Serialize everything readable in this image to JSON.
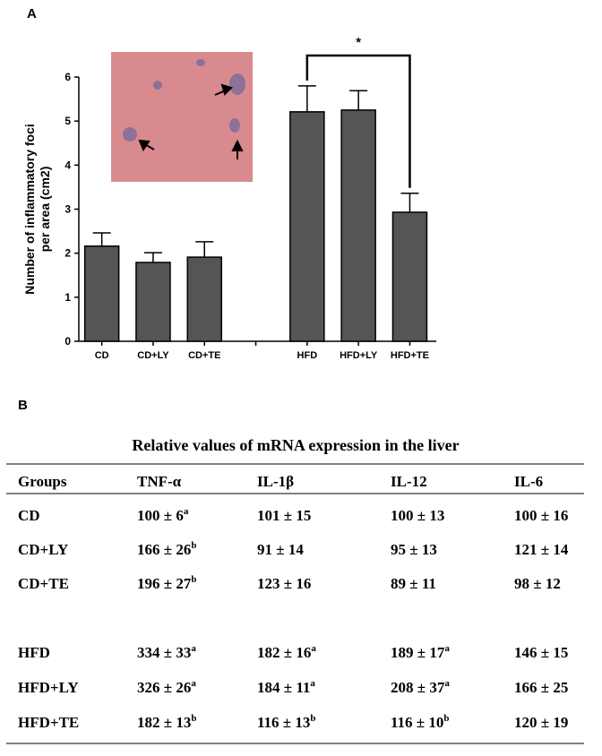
{
  "panel_a_label": "A",
  "chart_data": {
    "type": "bar",
    "ylabel_lines": [
      "Number of inflammatory foci",
      "per area (cm2)"
    ],
    "categories": [
      "CD",
      "CD+LY",
      "CD+TE",
      null,
      "HFD",
      "HFD+LY",
      "HFD+TE"
    ],
    "series": [
      {
        "color": "#555555",
        "values": [
          2.16,
          1.79,
          1.91,
          null,
          5.21,
          5.25,
          2.93
        ],
        "errors": [
          0.3,
          0.22,
          0.35,
          null,
          0.59,
          0.44,
          0.43
        ]
      }
    ],
    "ylim": [
      0,
      6
    ],
    "yticks": [
      0,
      1,
      2,
      3,
      4,
      5,
      6
    ],
    "annotations": [
      {
        "text": "*"
      }
    ]
  },
  "panel_b_label": "B",
  "table": {
    "title": "Relative values of mRNA expression in the liver",
    "header": [
      "Groups",
      "TNF-α",
      "IL-1β",
      "IL-12",
      "IL-6"
    ],
    "rows": [
      [
        "CD",
        {
          "text": "100 ± 6",
          "sup": "a"
        },
        {
          "text": "101 ± 15"
        },
        {
          "text": "100 ± 13"
        },
        {
          "text": "100 ± 16"
        }
      ],
      [
        "CD+LY",
        {
          "text": "166 ± 26",
          "sup": "b"
        },
        {
          "text": "91 ± 14"
        },
        {
          "text": "95 ± 13"
        },
        {
          "text": "121 ± 14"
        }
      ],
      [
        "CD+TE",
        {
          "text": "196 ± 27",
          "sup": "b"
        },
        {
          "text": "123 ± 16"
        },
        {
          "text": "89 ± 11"
        },
        {
          "text": "98 ± 12"
        }
      ],
      [
        "HFD",
        {
          "text": "334 ± 33",
          "sup": "a"
        },
        {
          "text": "182 ± 16",
          "sup": "a"
        },
        {
          "text": "189 ± 17",
          "sup": "a"
        },
        {
          "text": "146 ± 15"
        }
      ],
      [
        "HFD+LY",
        {
          "text": "326 ± 26",
          "sup": "a"
        },
        {
          "text": "184 ± 11",
          "sup": "a"
        },
        {
          "text": "208 ± 37",
          "sup": "a"
        },
        {
          "text": "166 ± 25"
        }
      ],
      [
        "HFD+TE",
        {
          "text": "182 ± 13",
          "sup": "b"
        },
        {
          "text": "116 ± 13",
          "sup": "b"
        },
        {
          "text": "116 ± 10",
          "sup": "b"
        },
        {
          "text": "120 ± 19"
        }
      ]
    ]
  }
}
